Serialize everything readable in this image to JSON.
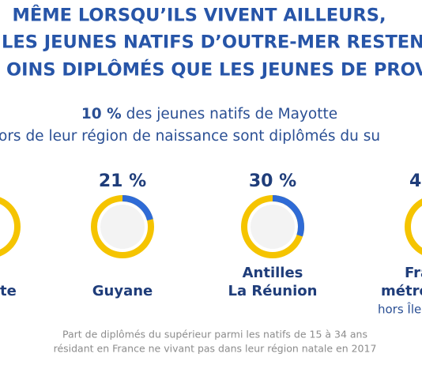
{
  "title": {
    "lines": [
      "MÊME LORSQU’ILS VIVENT AILLEURS,",
      "LES JEUNES NATIFS D’OUTRE-MER RESTENT",
      "OINS DIPLÔMÉS QUE LES JEUNES DE PROVIN"
    ]
  },
  "subtitle": {
    "highlight": "10 %",
    "line1_rest": "des jeunes natifs de Mayotte",
    "line2": "ors de leur région de naissance sont diplômés du su"
  },
  "gauges": [
    {
      "value": 21,
      "value_label": "21 %",
      "name": [
        "Guyane"
      ]
    },
    {
      "value": 30,
      "value_label": "30 %",
      "name": [
        "Antilles",
        "La Réunion"
      ]
    }
  ],
  "cropped": {
    "left_name": "te",
    "right_pct": "4",
    "right_name": [
      "Fra",
      "métro"
    ],
    "right_note": "hors Île"
  },
  "footnote": [
    "Part de diplômés du supérieur parmi les natifs de 15 à 34 ans",
    "résidant en France ne vivant pas dans leur région natale en 2017"
  ]
}
